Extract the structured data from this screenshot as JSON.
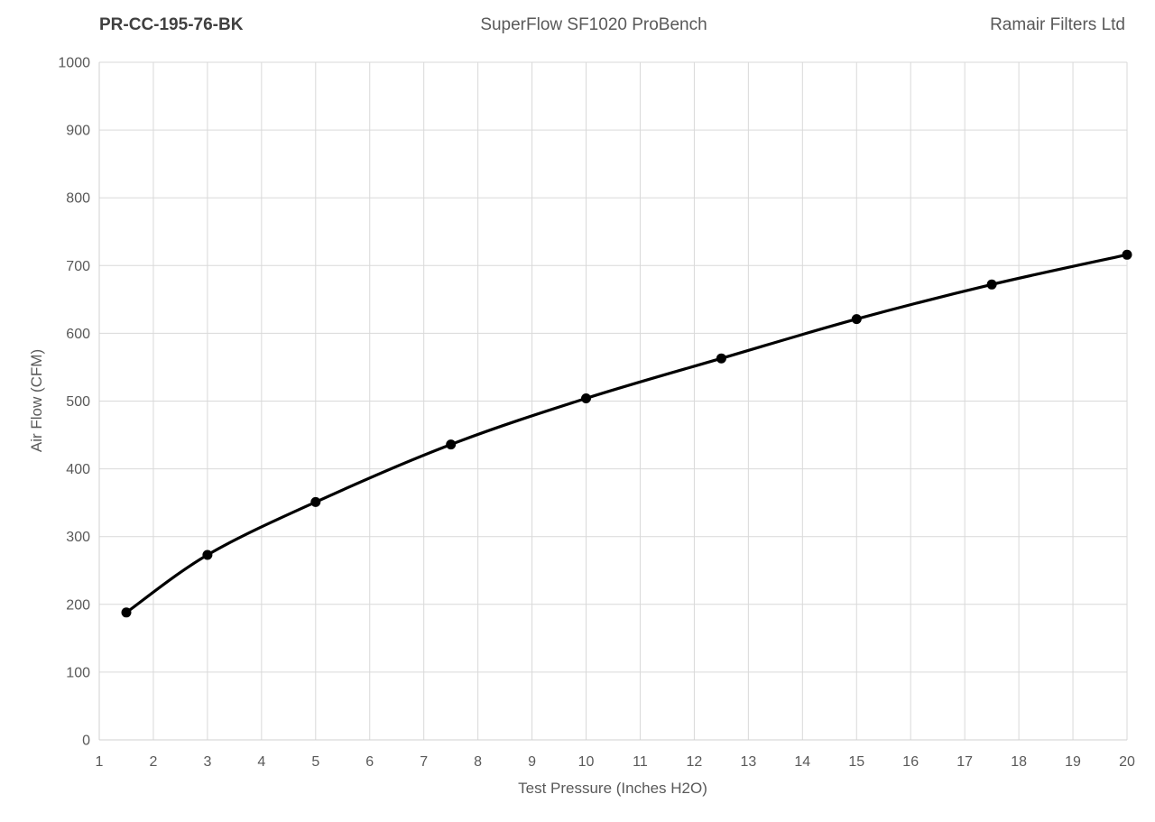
{
  "header": {
    "part_number": "PR-CC-195-76-BK",
    "test_bench": "SuperFlow SF1020 ProBench",
    "company": "Ramair Filters Ltd"
  },
  "chart_data": {
    "type": "line",
    "title": "",
    "xlabel": "Test Pressure (Inches H2O)",
    "ylabel": "Air Flow (CFM)",
    "x": [
      1.5,
      3,
      5,
      7.5,
      10,
      12.5,
      15,
      17.5,
      20
    ],
    "series": [
      {
        "name": "Air Flow (CFM)",
        "values": [
          188,
          273,
          351,
          436,
          504,
          563,
          621,
          672,
          716
        ],
        "color": "#000000",
        "marker": "circle",
        "smooth": true
      }
    ],
    "xlim": [
      1,
      20
    ],
    "ylim": [
      0,
      1000
    ],
    "x_ticks": [
      1,
      2,
      3,
      4,
      5,
      6,
      7,
      8,
      9,
      10,
      11,
      12,
      13,
      14,
      15,
      16,
      17,
      18,
      19,
      20
    ],
    "y_ticks": [
      0,
      100,
      200,
      300,
      400,
      500,
      600,
      700,
      800,
      900,
      1000
    ],
    "grid": true,
    "legend": "none"
  },
  "colors": {
    "background": "#ffffff",
    "gridline": "#d9d9d9",
    "axis_line": "#d0d0d0",
    "tick_label": "#595959",
    "series_line": "#000000",
    "marker_fill": "#000000"
  }
}
